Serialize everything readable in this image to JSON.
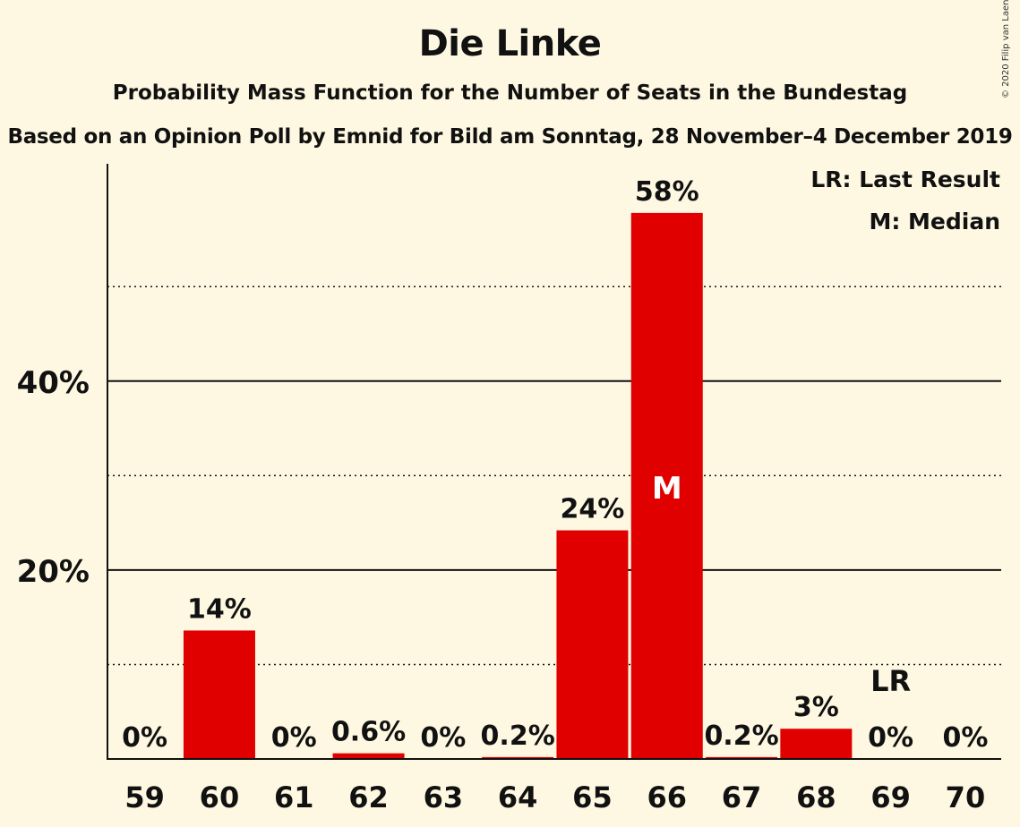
{
  "title": "Die Linke",
  "subtitle": "Probability Mass Function for the Number of Seats in the Bundestag",
  "source": "Based on an Opinion Poll by Emnid for Bild am Sonntag, 28 November–4 December 2019",
  "copyright": "© 2020 Filip van Laenen",
  "colors": {
    "bar": "#e00000",
    "background": "#fef8e2",
    "text": "#111111"
  },
  "chart_data": {
    "type": "bar",
    "categories": [
      "59",
      "60",
      "61",
      "62",
      "63",
      "64",
      "65",
      "66",
      "67",
      "68",
      "69",
      "70"
    ],
    "values": [
      0,
      13.6,
      0,
      0.6,
      0,
      0.2,
      24.2,
      57.8,
      0.2,
      3.2,
      0,
      0
    ],
    "value_labels": [
      "0%",
      "14%",
      "0%",
      "0.6%",
      "0%",
      "0.2%",
      "24%",
      "58%",
      "0.2%",
      "3%",
      "0%",
      "0%"
    ],
    "ylim": [
      0,
      63
    ],
    "major_ticks": [
      20,
      40
    ],
    "major_tick_labels": [
      "20%",
      "40%"
    ],
    "minor_gridlines": [
      10,
      30,
      50
    ],
    "median_category": "66",
    "median_marker": "M",
    "last_result_category": "69",
    "last_result_marker": "LR",
    "legend": [
      "LR: Last Result",
      "M: Median"
    ],
    "legend_position": "top-right"
  }
}
